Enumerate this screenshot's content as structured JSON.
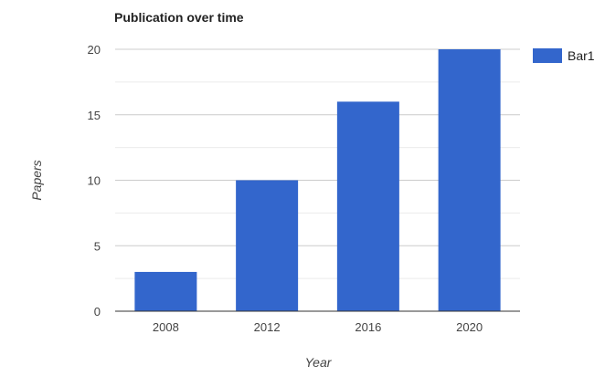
{
  "chart_data": {
    "type": "bar",
    "title": "Publication over time",
    "xlabel": "Year",
    "ylabel": "Papers",
    "categories": [
      "2008",
      "2012",
      "2016",
      "2020"
    ],
    "series": [
      {
        "name": "Bar1",
        "values": [
          3,
          10,
          16,
          20
        ],
        "color": "#3366cc"
      }
    ],
    "ylim": [
      0,
      20
    ],
    "yticks": [
      "0",
      "5",
      "10",
      "15",
      "20"
    ],
    "grid": true,
    "legend": "right"
  }
}
